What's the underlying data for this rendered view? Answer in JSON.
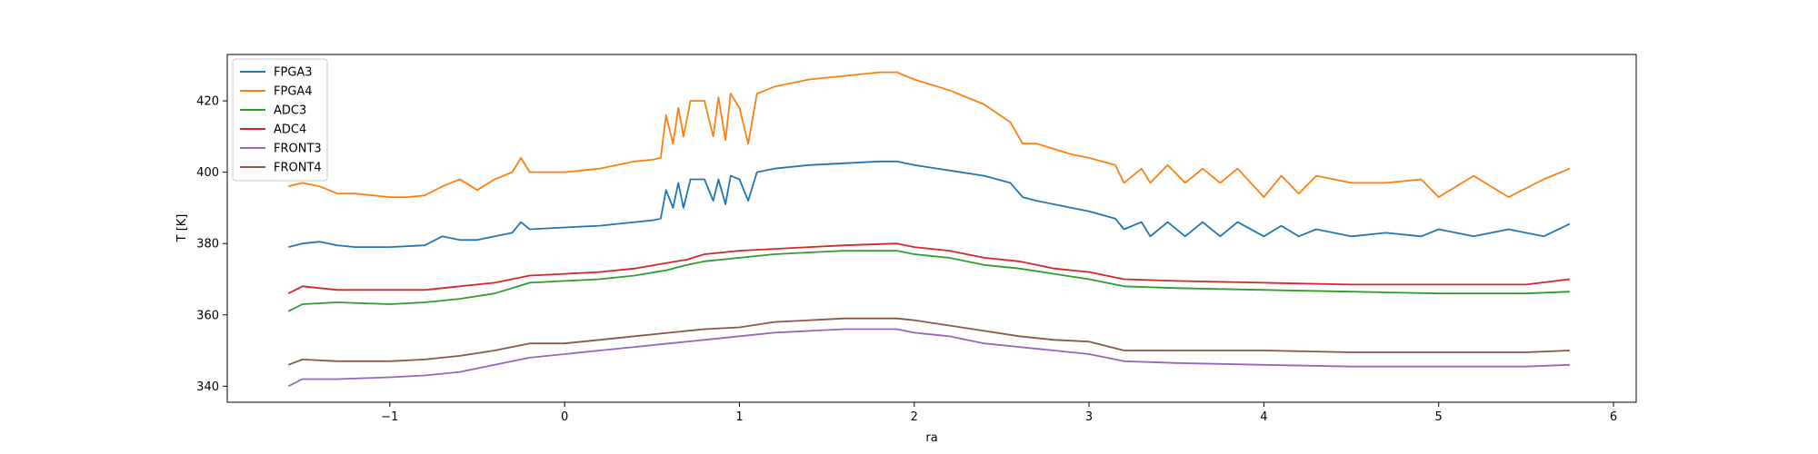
{
  "chart_data": {
    "type": "line",
    "title": "",
    "xlabel": "ra",
    "ylabel": "T [K]",
    "xlim": [
      -1.93,
      6.13
    ],
    "ylim": [
      335.5,
      433
    ],
    "xticks": [
      -1,
      0,
      1,
      2,
      3,
      4,
      5,
      6
    ],
    "yticks": [
      340,
      360,
      380,
      400,
      420
    ],
    "xtick_labels": [
      "−1",
      "0",
      "1",
      "2",
      "3",
      "4",
      "5",
      "6"
    ],
    "ytick_labels": [
      "340",
      "360",
      "380",
      "400",
      "420"
    ],
    "grid": false,
    "legend": "top-left",
    "series": [
      {
        "name": "FPGA3",
        "color": "#1f77b4",
        "x": [
          -1.58,
          -1.5,
          -1.4,
          -1.3,
          -1.2,
          -1.0,
          -0.8,
          -0.7,
          -0.6,
          -0.5,
          -0.4,
          -0.3,
          -0.25,
          -0.2,
          0.0,
          0.2,
          0.4,
          0.5,
          0.55,
          0.58,
          0.62,
          0.65,
          0.68,
          0.72,
          0.8,
          0.85,
          0.88,
          0.92,
          0.95,
          1.0,
          1.05,
          1.1,
          1.2,
          1.4,
          1.6,
          1.8,
          1.9,
          2.0,
          2.2,
          2.4,
          2.55,
          2.62,
          2.7,
          2.9,
          3.0,
          3.15,
          3.2,
          3.3,
          3.35,
          3.45,
          3.55,
          3.65,
          3.75,
          3.85,
          4.0,
          4.1,
          4.2,
          4.3,
          4.5,
          4.7,
          4.9,
          5.0,
          5.2,
          5.4,
          5.6,
          5.75
        ],
        "y": [
          379,
          380,
          380.5,
          379.5,
          379,
          379,
          379.5,
          382,
          381,
          381,
          382,
          383,
          386,
          384,
          384.5,
          385,
          386,
          386.5,
          387,
          395,
          390,
          397,
          390,
          398,
          398,
          392,
          398,
          391,
          399,
          398,
          392,
          400,
          401,
          402,
          402.5,
          403,
          403,
          402,
          400.5,
          399,
          397,
          393,
          392,
          390,
          389,
          387,
          384,
          386,
          382,
          386,
          382,
          386,
          382,
          386,
          382,
          385,
          382,
          384,
          382,
          383,
          382,
          384,
          382,
          384,
          382,
          385.5
        ]
      },
      {
        "name": "FPGA4",
        "color": "#ff7f0e",
        "x": [
          -1.58,
          -1.5,
          -1.4,
          -1.3,
          -1.2,
          -1.0,
          -0.9,
          -0.8,
          -0.7,
          -0.6,
          -0.5,
          -0.4,
          -0.3,
          -0.25,
          -0.2,
          0.0,
          0.2,
          0.4,
          0.5,
          0.55,
          0.58,
          0.62,
          0.65,
          0.68,
          0.72,
          0.8,
          0.85,
          0.88,
          0.92,
          0.95,
          1.0,
          1.05,
          1.1,
          1.2,
          1.4,
          1.6,
          1.8,
          1.9,
          2.0,
          2.2,
          2.4,
          2.55,
          2.62,
          2.7,
          2.9,
          3.0,
          3.15,
          3.2,
          3.3,
          3.35,
          3.45,
          3.55,
          3.65,
          3.75,
          3.85,
          4.0,
          4.1,
          4.2,
          4.3,
          4.5,
          4.7,
          4.9,
          5.0,
          5.2,
          5.4,
          5.6,
          5.75
        ],
        "y": [
          396,
          397,
          396,
          394,
          394,
          393,
          393,
          393.5,
          396,
          398,
          395,
          398,
          400,
          404,
          400,
          400,
          401,
          403,
          403.5,
          404,
          416,
          408,
          418,
          410,
          420,
          420,
          410,
          421,
          409,
          422,
          418,
          408,
          422,
          424,
          426,
          427,
          428,
          428,
          426,
          423,
          419,
          414,
          408,
          408,
          405,
          404,
          402,
          397,
          401,
          397,
          402,
          397,
          401,
          397,
          401,
          393,
          399,
          394,
          399,
          397,
          397,
          398,
          393,
          399,
          393,
          398,
          401
        ]
      },
      {
        "name": "ADC3",
        "color": "#2ca02c",
        "x": [
          -1.58,
          -1.5,
          -1.3,
          -1.0,
          -0.8,
          -0.6,
          -0.4,
          -0.2,
          0.0,
          0.2,
          0.4,
          0.58,
          0.7,
          0.8,
          1.0,
          1.2,
          1.4,
          1.6,
          1.9,
          2.0,
          2.2,
          2.4,
          2.6,
          2.8,
          3.0,
          3.2,
          3.5,
          4.0,
          4.5,
          5.0,
          5.5,
          5.75
        ],
        "y": [
          361,
          363,
          363.5,
          363,
          363.5,
          364.5,
          366,
          369,
          369.5,
          370,
          371,
          372.5,
          374,
          375,
          376,
          377,
          377.5,
          378,
          378,
          377,
          376,
          374,
          373,
          371.5,
          370,
          368,
          367.5,
          367,
          366.5,
          366,
          366,
          366.5
        ]
      },
      {
        "name": "ADC4",
        "color": "#d62728",
        "x": [
          -1.58,
          -1.5,
          -1.3,
          -1.0,
          -0.8,
          -0.6,
          -0.4,
          -0.2,
          0.0,
          0.2,
          0.4,
          0.58,
          0.7,
          0.8,
          1.0,
          1.2,
          1.4,
          1.6,
          1.9,
          2.0,
          2.2,
          2.4,
          2.6,
          2.8,
          3.0,
          3.2,
          3.5,
          4.0,
          4.5,
          5.0,
          5.5,
          5.75
        ],
        "y": [
          366,
          368,
          367,
          367,
          367,
          368,
          369,
          371,
          371.5,
          372,
          373,
          374.5,
          375.5,
          377,
          378,
          378.5,
          379,
          379.5,
          380,
          379,
          378,
          376,
          375,
          373,
          372,
          370,
          369.5,
          369,
          368.5,
          368.5,
          368.5,
          370
        ]
      },
      {
        "name": "FRONT3",
        "color": "#9467bd",
        "x": [
          -1.58,
          -1.5,
          -1.3,
          -1.0,
          -0.8,
          -0.6,
          -0.4,
          -0.2,
          0.0,
          0.2,
          0.4,
          0.6,
          0.8,
          1.0,
          1.2,
          1.4,
          1.6,
          1.9,
          2.0,
          2.2,
          2.4,
          2.6,
          2.8,
          3.0,
          3.2,
          3.5,
          4.0,
          4.5,
          5.0,
          5.5,
          5.75
        ],
        "y": [
          340,
          342,
          342,
          342.5,
          343,
          344,
          346,
          348,
          349,
          350,
          351,
          352,
          353,
          354,
          355,
          355.5,
          356,
          356,
          355,
          354,
          352,
          351,
          350,
          349,
          347,
          346.5,
          346,
          345.5,
          345.5,
          345.5,
          346
        ]
      },
      {
        "name": "FRONT4",
        "color": "#8c564b",
        "x": [
          -1.58,
          -1.5,
          -1.3,
          -1.0,
          -0.8,
          -0.6,
          -0.4,
          -0.2,
          0.0,
          0.2,
          0.4,
          0.6,
          0.8,
          1.0,
          1.2,
          1.4,
          1.6,
          1.9,
          2.0,
          2.2,
          2.4,
          2.6,
          2.8,
          3.0,
          3.2,
          3.5,
          4.0,
          4.5,
          5.0,
          5.5,
          5.75
        ],
        "y": [
          346,
          347.5,
          347,
          347,
          347.5,
          348.5,
          350,
          352,
          352,
          353,
          354,
          355,
          356,
          356.5,
          358,
          358.5,
          359,
          359,
          358.5,
          357,
          355.5,
          354,
          353,
          352.5,
          350,
          350,
          350,
          349.5,
          349.5,
          349.5,
          350
        ]
      }
    ]
  }
}
